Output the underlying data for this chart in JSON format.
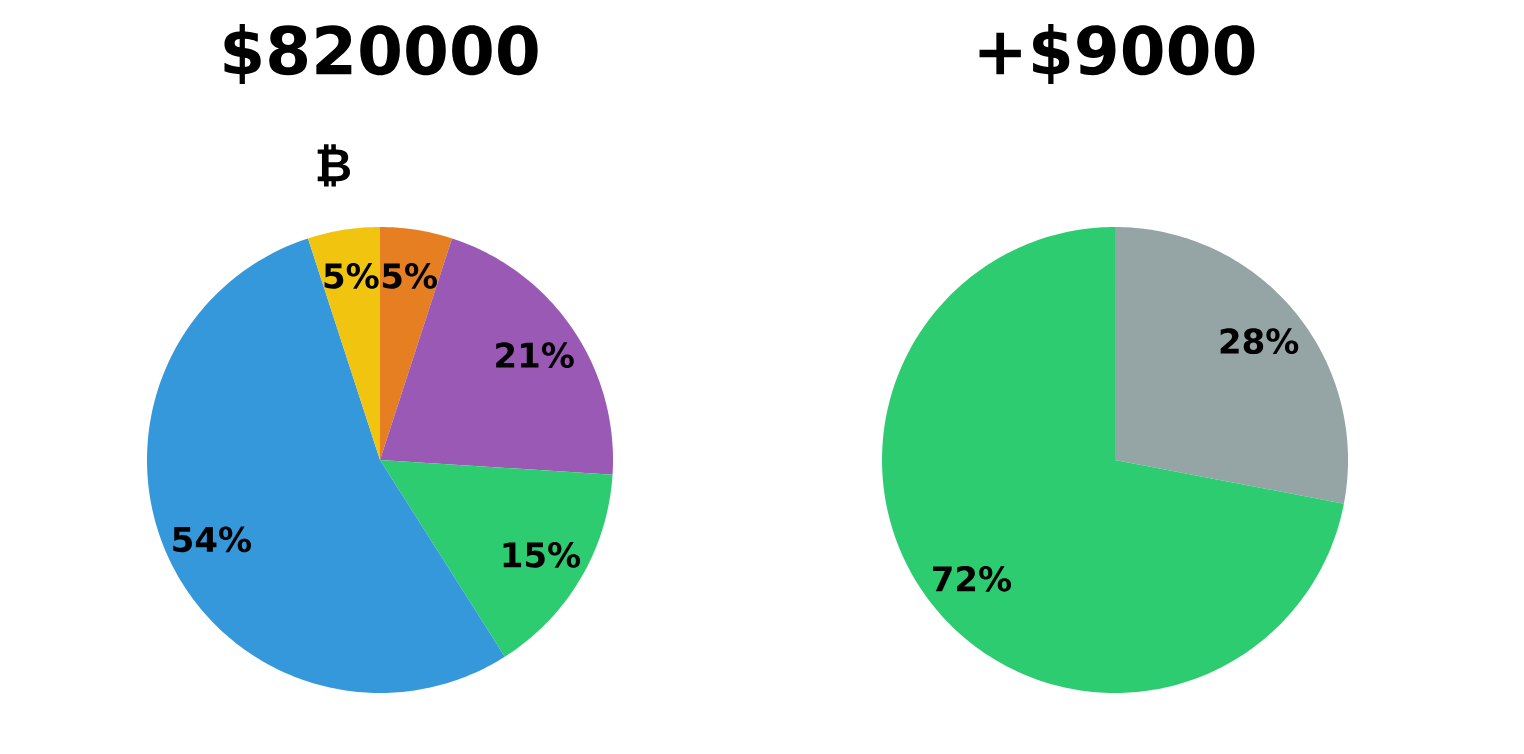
{
  "chart_data": [
    {
      "type": "pie",
      "title": "$820000",
      "categories": [
        null,
        null,
        null,
        null,
        "₿"
      ],
      "values": [
        5,
        21,
        15,
        54,
        5
      ],
      "colors": [
        "#e67e22",
        "#9b59b6",
        "#2ecc71",
        "#3498db",
        "#f1c40f"
      ],
      "value_labels": [
        "5%",
        "21%",
        "15%",
        "54%",
        "5%"
      ]
    },
    {
      "type": "pie",
      "title": "+$9000",
      "categories": [
        null,
        null
      ],
      "values": [
        28,
        72
      ],
      "colors": [
        "#95a5a6",
        "#2ecc71"
      ],
      "value_labels": [
        "28%",
        "72%"
      ]
    }
  ]
}
